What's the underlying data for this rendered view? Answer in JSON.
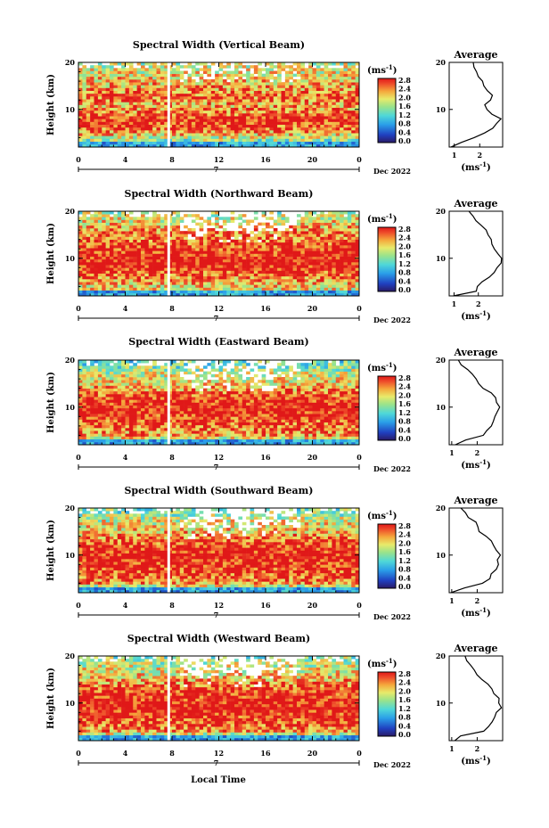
{
  "figure": {
    "xlabel": "Local Time",
    "date_label": "Dec 2022",
    "day_label": "7",
    "ylabel": "Height (km)",
    "unit": "(ms",
    "unit_exp": "-1",
    "unit_close": ")",
    "avg_title": "Average",
    "colorbar_ticks": [
      "0.0",
      "0.4",
      "0.8",
      "1.2",
      "1.6",
      "2.0",
      "2.4",
      "2.8"
    ]
  },
  "chart_data": [
    {
      "type": "heatmap",
      "title": "Spectral Width (Vertical Beam)",
      "x_ticks": [
        "0",
        "4",
        "8",
        "12",
        "16",
        "20",
        "0"
      ],
      "xlim": [
        0,
        24
      ],
      "y_ticks": [
        "10",
        "20"
      ],
      "ylim": [
        2,
        20
      ],
      "colorbar_range": [
        0.0,
        2.8
      ],
      "profile": {
        "title": "Average",
        "x_ticks": [
          "1",
          "2"
        ],
        "xlim": [
          0.8,
          2.9
        ],
        "heights": [
          2,
          3,
          4,
          5,
          6,
          7,
          8,
          9,
          10,
          11,
          12,
          13,
          14,
          15,
          16,
          17,
          18,
          19,
          20
        ],
        "values": [
          0.9,
          1.3,
          1.8,
          2.2,
          2.5,
          2.7,
          2.8,
          2.5,
          2.3,
          2.2,
          2.4,
          2.5,
          2.3,
          2.2,
          2.1,
          2.0,
          1.9,
          1.8,
          1.7
        ]
      }
    },
    {
      "type": "heatmap",
      "title": "Spectral Width (Northward Beam)",
      "x_ticks": [
        "0",
        "4",
        "8",
        "12",
        "16",
        "20",
        "0"
      ],
      "xlim": [
        0,
        24
      ],
      "y_ticks": [
        "10",
        "20"
      ],
      "ylim": [
        2,
        20
      ],
      "colorbar_range": [
        0.0,
        2.8
      ],
      "profile": {
        "title": "Average",
        "x_ticks": [
          "1",
          "2"
        ],
        "xlim": [
          0.8,
          3.0
        ],
        "heights": [
          2,
          3,
          4,
          5,
          6,
          7,
          8,
          9,
          10,
          11,
          12,
          13,
          14,
          15,
          16,
          17,
          18,
          19,
          20
        ],
        "values": [
          1.0,
          1.9,
          2.0,
          2.2,
          2.4,
          2.6,
          2.8,
          2.9,
          2.9,
          2.8,
          2.7,
          2.6,
          2.5,
          2.4,
          2.3,
          2.1,
          1.9,
          1.8,
          1.6
        ]
      }
    },
    {
      "type": "heatmap",
      "title": "Spectral Width (Eastward Beam)",
      "x_ticks": [
        "0",
        "4",
        "8",
        "12",
        "16",
        "20",
        "0"
      ],
      "xlim": [
        0,
        24
      ],
      "y_ticks": [
        "10",
        "20"
      ],
      "ylim": [
        2,
        20
      ],
      "colorbar_range": [
        0.0,
        2.8
      ],
      "profile": {
        "title": "Average",
        "x_ticks": [
          "1",
          "2"
        ],
        "xlim": [
          0.9,
          3.0
        ],
        "heights": [
          2,
          3,
          4,
          5,
          6,
          7,
          8,
          9,
          10,
          11,
          12,
          13,
          14,
          15,
          16,
          17,
          18,
          19,
          20
        ],
        "values": [
          1.1,
          1.6,
          2.2,
          2.4,
          2.5,
          2.6,
          2.7,
          2.8,
          2.9,
          2.8,
          2.7,
          2.5,
          2.2,
          2.0,
          1.9,
          1.8,
          1.6,
          1.4,
          1.3
        ]
      }
    },
    {
      "type": "heatmap",
      "title": "Spectral Width (Southward Beam)",
      "x_ticks": [
        "0",
        "4",
        "8",
        "12",
        "16",
        "20",
        "0"
      ],
      "xlim": [
        0,
        24
      ],
      "y_ticks": [
        "10",
        "20"
      ],
      "ylim": [
        2,
        20
      ],
      "colorbar_range": [
        0.0,
        2.8
      ],
      "profile": {
        "title": "Average",
        "x_ticks": [
          "1",
          "2"
        ],
        "xlim": [
          0.9,
          3.0
        ],
        "heights": [
          2,
          3,
          4,
          5,
          6,
          7,
          8,
          9,
          10,
          11,
          12,
          13,
          14,
          15,
          16,
          17,
          18,
          19,
          20
        ],
        "values": [
          1.0,
          1.5,
          2.2,
          2.5,
          2.6,
          2.7,
          2.8,
          2.8,
          2.9,
          2.8,
          2.7,
          2.5,
          2.3,
          2.1,
          2.0,
          1.9,
          1.7,
          1.5,
          1.4
        ]
      }
    },
    {
      "type": "heatmap",
      "title": "Spectral Width (Westward Beam)",
      "x_ticks": [
        "0",
        "4",
        "8",
        "12",
        "16",
        "20",
        "0"
      ],
      "xlim": [
        0,
        24
      ],
      "y_ticks": [
        "10",
        "20"
      ],
      "ylim": [
        2,
        20
      ],
      "colorbar_range": [
        0.0,
        2.8
      ],
      "profile": {
        "title": "Average",
        "x_ticks": [
          "1",
          "2"
        ],
        "xlim": [
          0.9,
          3.0
        ],
        "heights": [
          2,
          3,
          4,
          5,
          6,
          7,
          8,
          9,
          10,
          11,
          12,
          13,
          14,
          15,
          16,
          17,
          18,
          19,
          20
        ],
        "values": [
          1.1,
          1.4,
          2.3,
          2.5,
          2.6,
          2.7,
          2.8,
          2.9,
          2.9,
          2.8,
          2.7,
          2.6,
          2.4,
          2.2,
          2.0,
          1.9,
          1.8,
          1.6,
          1.5
        ]
      }
    }
  ]
}
